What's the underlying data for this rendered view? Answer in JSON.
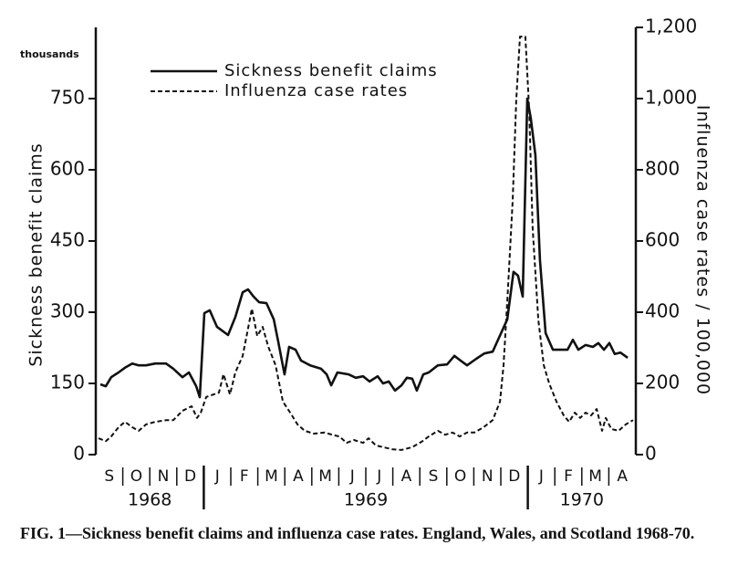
{
  "chart_data": {
    "type": "line",
    "caption": "FIG. 1—Sickness benefit claims and influenza case rates. England, Wales, and Scotland 1968-70.",
    "y_unit_label": "thousands",
    "ylabel": "Sickness benefit claims",
    "y2label": "Influenza case rates / 100,000",
    "categories": [
      "S",
      "O",
      "N",
      "D",
      "J",
      "F",
      "M",
      "A",
      "M",
      "J",
      "J",
      "A",
      "S",
      "O",
      "N",
      "D",
      "J",
      "F",
      "M",
      "A"
    ],
    "year_labels": [
      "1968",
      "1969",
      "1970"
    ],
    "year_boundaries": [
      4,
      16
    ],
    "xlim": [
      0,
      20
    ],
    "ylim": [
      0,
      900
    ],
    "yticks": [
      0,
      150,
      300,
      450,
      600,
      750
    ],
    "y2lim": [
      0,
      1200
    ],
    "y2ticks": [
      0,
      200,
      400,
      600,
      800,
      {
        "value": 1000,
        "label": "1,000"
      },
      {
        "value": 1200,
        "label": "1,200"
      }
    ],
    "series": [
      {
        "name": "Sickness benefit claims",
        "color": "#111111",
        "style": "solid",
        "x": [
          0.17,
          0.37,
          0.57,
          0.84,
          1.08,
          1.35,
          1.59,
          1.86,
          2.2,
          2.6,
          2.87,
          3.21,
          3.45,
          3.72,
          3.85,
          4.02,
          4.22,
          4.49,
          4.9,
          5.17,
          5.44,
          5.64,
          5.84,
          6.05,
          6.32,
          6.59,
          6.76,
          6.99,
          7.16,
          7.4,
          7.6,
          7.94,
          8.34,
          8.55,
          8.72,
          8.95,
          9.36,
          9.63,
          9.9,
          10.14,
          10.44,
          10.64,
          10.85,
          11.08,
          11.32,
          11.52,
          11.72,
          11.89,
          12.13,
          12.33,
          12.67,
          13.01,
          13.28,
          13.51,
          13.75,
          14.09,
          14.39,
          14.7,
          14.93,
          15.24,
          15.47,
          15.64,
          15.81,
          15.98,
          16.11,
          16.28,
          16.45,
          16.66,
          16.93,
          17.2,
          17.47,
          17.67,
          17.87,
          18.14,
          18.41,
          18.61,
          18.82,
          19.02,
          19.22,
          19.43,
          19.7
        ],
        "values": [
          148,
          144,
          163,
          173,
          183,
          192,
          188,
          188,
          192,
          192,
          181,
          163,
          173,
          144,
          121,
          298,
          304,
          269,
          252,
          290,
          342,
          348,
          333,
          321,
          319,
          285,
          237,
          169,
          227,
          221,
          198,
          188,
          181,
          169,
          146,
          173,
          169,
          162,
          165,
          154,
          165,
          150,
          154,
          135,
          146,
          162,
          160,
          135,
          169,
          173,
          188,
          190,
          208,
          198,
          188,
          202,
          213,
          217,
          246,
          285,
          385,
          377,
          333,
          750,
          708,
          631,
          410,
          256,
          221,
          221,
          221,
          242,
          221,
          231,
          227,
          235,
          221,
          235,
          212,
          215,
          204
        ]
      },
      {
        "name": "Influenza case rates",
        "color": "#111111",
        "style": "dashed",
        "axis": "y2",
        "x": [
          0.1,
          0.37,
          0.57,
          0.84,
          1.08,
          1.35,
          1.59,
          1.86,
          2.2,
          2.6,
          2.87,
          3.21,
          3.55,
          3.75,
          3.89,
          4.09,
          4.36,
          4.56,
          4.73,
          4.97,
          5.17,
          5.44,
          5.64,
          5.78,
          5.98,
          6.18,
          6.39,
          6.66,
          6.93,
          7.2,
          7.47,
          7.74,
          8.07,
          8.48,
          8.75,
          9.02,
          9.29,
          9.56,
          9.9,
          10.1,
          10.37,
          10.64,
          10.98,
          11.32,
          11.72,
          12.06,
          12.33,
          12.67,
          12.94,
          13.21,
          13.48,
          13.75,
          14.02,
          14.36,
          14.7,
          14.97,
          15.1,
          15.24,
          15.44,
          15.57,
          15.71,
          15.91,
          16.05,
          16.18,
          16.39,
          16.59,
          16.79,
          17.06,
          17.33,
          17.53,
          17.74,
          17.94,
          18.14,
          18.34,
          18.55,
          18.75,
          18.89,
          19.09,
          19.36,
          19.63,
          19.9
        ],
        "values": [
          46,
          38,
          51,
          77,
          92,
          77,
          67,
          85,
          92,
          97,
          97,
          123,
          136,
          103,
          118,
          162,
          169,
          174,
          226,
          169,
          231,
          277,
          354,
          410,
          333,
          359,
          303,
          251,
          149,
          118,
          85,
          67,
          59,
          62,
          56,
          51,
          33,
          41,
          33,
          46,
          26,
          21,
          15,
          13,
          21,
          36,
          51,
          67,
          56,
          62,
          51,
          62,
          62,
          77,
          97,
          149,
          251,
          431,
          713,
          995,
          1174,
          1174,
          969,
          636,
          379,
          251,
          200,
          149,
          110,
          92,
          118,
          103,
          118,
          110,
          128,
          67,
          103,
          72,
          67,
          85,
          97
        ]
      }
    ]
  }
}
